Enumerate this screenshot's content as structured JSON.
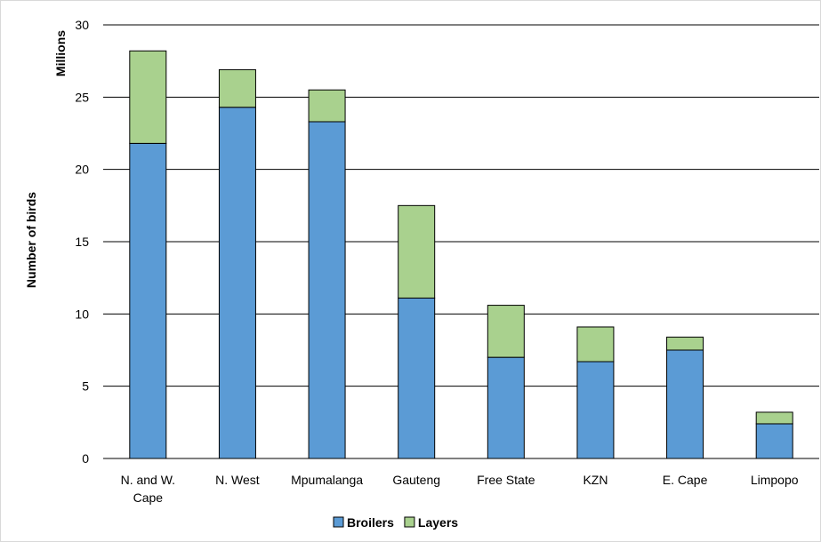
{
  "chart_data": {
    "type": "bar",
    "stacked": true,
    "categories": [
      [
        "N. and W.",
        "Cape"
      ],
      [
        "N. West"
      ],
      [
        "Mpumalanga"
      ],
      [
        "Gauteng"
      ],
      [
        "Free State"
      ],
      [
        "KZN"
      ],
      [
        "E. Cape"
      ],
      [
        "Limpopo"
      ]
    ],
    "series": [
      {
        "name": "Broilers",
        "color": "#5b9bd5",
        "values": [
          21.8,
          24.3,
          23.3,
          11.1,
          7.0,
          6.7,
          7.5,
          2.4
        ]
      },
      {
        "name": "Layers",
        "color": "#a9d18e",
        "values": [
          6.4,
          2.6,
          2.2,
          6.4,
          3.6,
          2.4,
          0.9,
          0.8
        ]
      }
    ],
    "ylabel": "Number of birds",
    "yunit": "Millions",
    "ylim": [
      0,
      30
    ],
    "yticks": [
      "0",
      "5",
      "10",
      "15",
      "20",
      "25",
      "30"
    ],
    "grid": true,
    "legend": "bottom"
  }
}
